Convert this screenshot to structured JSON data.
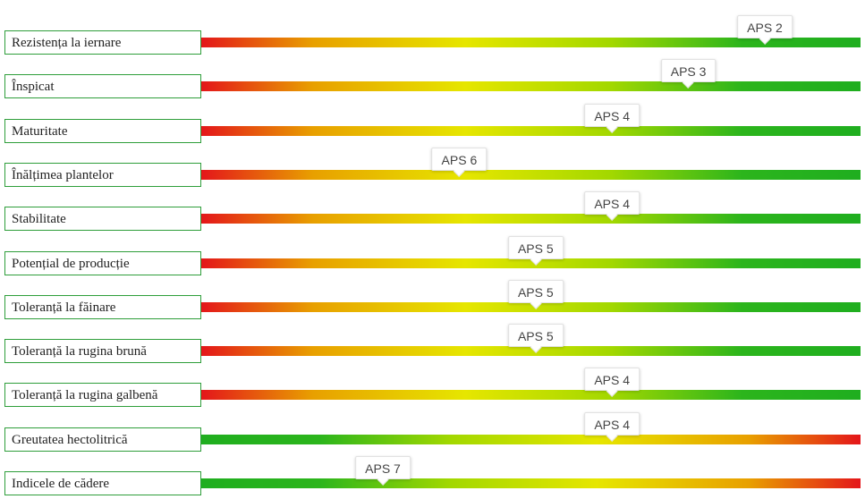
{
  "chart_data": {
    "type": "bar",
    "scale_min": 1,
    "scale_max": 9,
    "rows": [
      {
        "label": "Rezistența la iernare",
        "marker": "APS 2",
        "value": 2,
        "direction": "normal"
      },
      {
        "label": "Înspicat",
        "marker": "APS 3",
        "value": 3,
        "direction": "normal"
      },
      {
        "label": "Maturitate",
        "marker": "APS 4",
        "value": 4,
        "direction": "normal"
      },
      {
        "label": "Înălțimea plantelor",
        "marker": "APS 6",
        "value": 6,
        "direction": "normal"
      },
      {
        "label": "Stabilitate",
        "marker": "APS 4",
        "value": 4,
        "direction": "normal"
      },
      {
        "label": "Potențial de producție",
        "marker": "APS 5",
        "value": 5,
        "direction": "normal"
      },
      {
        "label": "Toleranță la făinare",
        "marker": "APS 5",
        "value": 5,
        "direction": "normal"
      },
      {
        "label": "Toleranță la rugina brună",
        "marker": "APS 5",
        "value": 5,
        "direction": "normal"
      },
      {
        "label": "Toleranță la rugina galbenă",
        "marker": "APS 4",
        "value": 4,
        "direction": "normal"
      },
      {
        "label": "Greutatea hectolitrică",
        "marker": "APS 4",
        "value": 4,
        "direction": "reversed"
      },
      {
        "label": "Indicele de cădere",
        "marker": "APS 7",
        "value": 7,
        "direction": "reversed"
      }
    ],
    "colors": {
      "low": "#e4161a",
      "mid": "#e6e600",
      "high": "#1fae1f",
      "label_border": "#2e9e3a"
    }
  }
}
